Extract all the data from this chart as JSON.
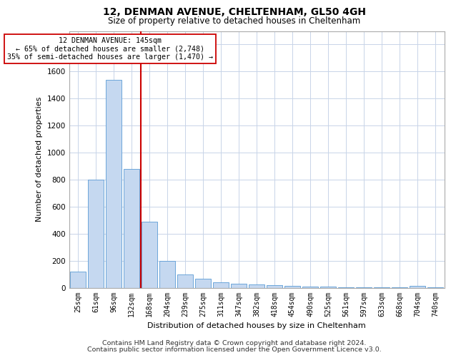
{
  "title1": "12, DENMAN AVENUE, CHELTENHAM, GL50 4GH",
  "title2": "Size of property relative to detached houses in Cheltenham",
  "xlabel": "Distribution of detached houses by size in Cheltenham",
  "ylabel": "Number of detached properties",
  "categories": [
    "25sqm",
    "61sqm",
    "96sqm",
    "132sqm",
    "168sqm",
    "204sqm",
    "239sqm",
    "275sqm",
    "311sqm",
    "347sqm",
    "382sqm",
    "418sqm",
    "454sqm",
    "490sqm",
    "525sqm",
    "561sqm",
    "597sqm",
    "633sqm",
    "668sqm",
    "704sqm",
    "740sqm"
  ],
  "values": [
    120,
    800,
    1540,
    880,
    490,
    200,
    100,
    65,
    40,
    30,
    25,
    20,
    15,
    10,
    8,
    5,
    5,
    4,
    3,
    12,
    2
  ],
  "bar_color": "#c5d8f0",
  "bar_edge_color": "#5b9bd5",
  "vline_color": "#cc0000",
  "vline_index": 3.5,
  "annotation_line1": "12 DENMAN AVENUE: 145sqm",
  "annotation_line2": "← 65% of detached houses are smaller (2,748)",
  "annotation_line3": "35% of semi-detached houses are larger (1,470) →",
  "annotation_box_color": "#ffffff",
  "annotation_box_edge": "#cc0000",
  "ylim_max": 1900,
  "yticks": [
    0,
    200,
    400,
    600,
    800,
    1000,
    1200,
    1400,
    1600,
    1800
  ],
  "footer1": "Contains HM Land Registry data © Crown copyright and database right 2024.",
  "footer2": "Contains public sector information licensed under the Open Government Licence v3.0.",
  "bg_color": "#ffffff",
  "grid_color": "#c8d4e8"
}
